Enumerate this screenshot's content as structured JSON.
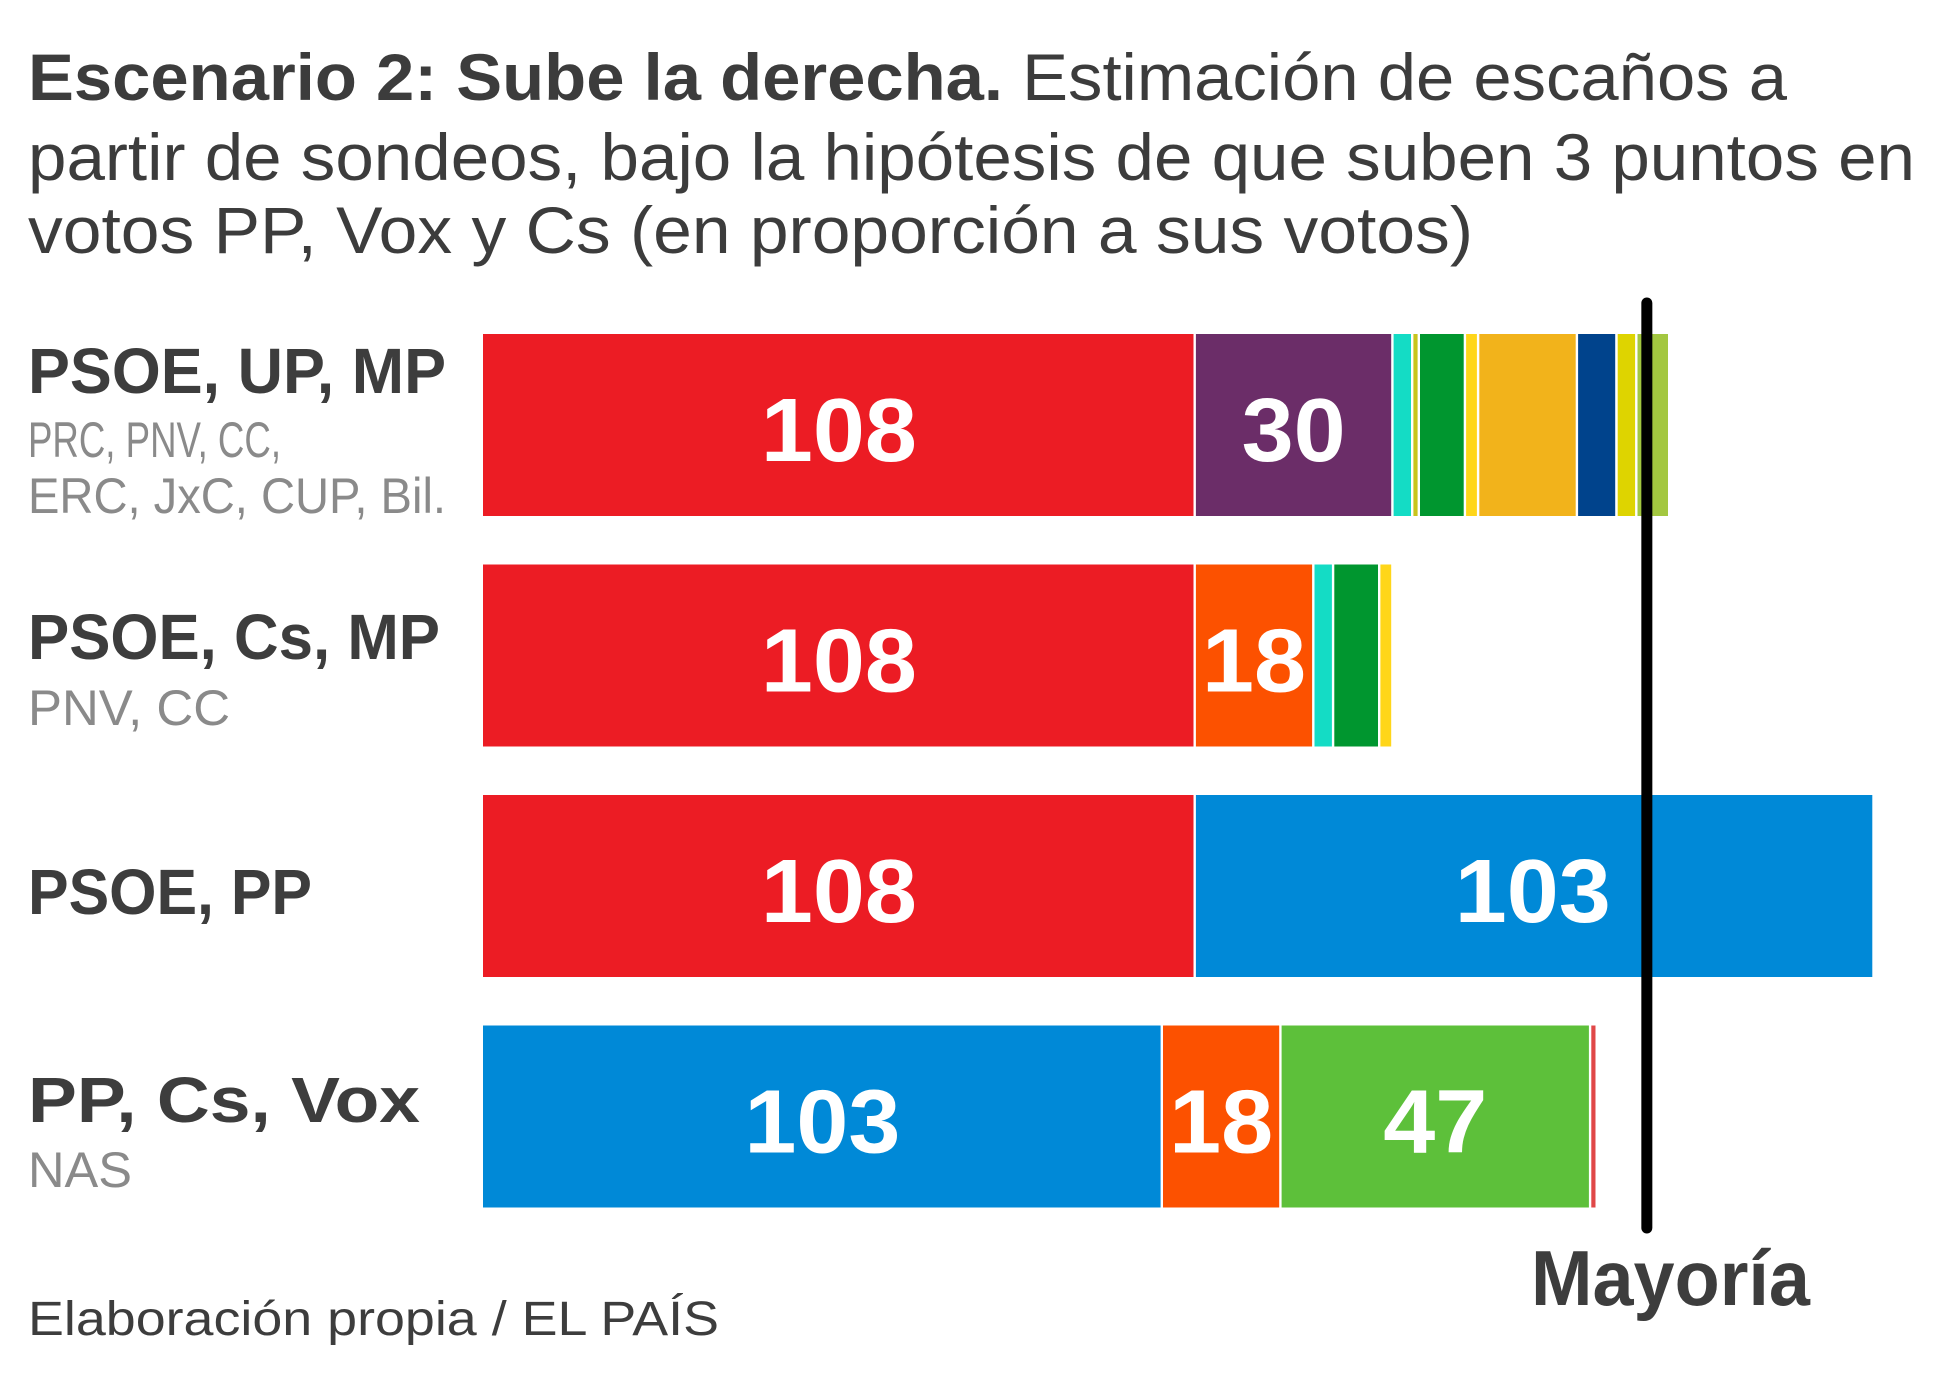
{
  "chart_data": {
    "type": "bar",
    "orientation": "horizontal-stacked",
    "title": "Escenario 2: Sube la derecha.",
    "subtitle": "Estimación de escaños a partir de sondeos, bajo la hipótesis de que suben 3 puntos en votos PP, Vox y Cs (en proporción a sus votos)",
    "title_lines": [
      {
        "bold": "Escenario 2: Sube la derecha.",
        "regular": " Estimación de escaños a"
      },
      {
        "bold": "",
        "regular": "partir de sondeos, bajo la hipótesis de que suben 3 puntos en"
      },
      {
        "bold": "",
        "regular": "votos PP, Vox y Cs (en proporción a sus votos)"
      }
    ],
    "xlabel": "",
    "ylabel": "",
    "xlim": [
      0,
      211
    ],
    "grid": false,
    "majority": {
      "label": "Mayoría",
      "value": 176
    },
    "source": "Elaboración propia / EL PAÍS",
    "categories": [
      {
        "label": "PSOE, UP, MP",
        "sublabel_lines": [
          "PRC, PNV, CC,",
          "ERC, JxC, CUP, Bil."
        ],
        "segments": [
          {
            "party": "PSOE",
            "value": 108,
            "color": "#ec1c24",
            "show_label": true
          },
          {
            "party": "UP",
            "value": 30,
            "color": "#6b2d68",
            "show_label": true
          },
          {
            "party": "MP",
            "value": 3,
            "color": "#14dcc5",
            "show_label": false
          },
          {
            "party": "PRC",
            "value": 1,
            "color": "#c8c41c",
            "show_label": false
          },
          {
            "party": "PNV",
            "value": 7,
            "color": "#00962f",
            "show_label": false
          },
          {
            "party": "CC",
            "value": 2,
            "color": "#ffd619",
            "show_label": false
          },
          {
            "party": "ERC",
            "value": 15,
            "color": "#f2b31b",
            "show_label": false
          },
          {
            "party": "JxC",
            "value": 6,
            "color": "#00438c",
            "show_label": false
          },
          {
            "party": "CUP",
            "value": 3,
            "color": "#ded400",
            "show_label": false
          },
          {
            "party": "Bil.",
            "value": 5,
            "color": "#a3c740",
            "show_label": false
          }
        ]
      },
      {
        "label": "PSOE, Cs, MP",
        "sublabel_lines": [
          "PNV, CC"
        ],
        "segments": [
          {
            "party": "PSOE",
            "value": 108,
            "color": "#ec1c24",
            "show_label": true
          },
          {
            "party": "Cs",
            "value": 18,
            "color": "#fc5100",
            "show_label": true
          },
          {
            "party": "MP",
            "value": 3,
            "color": "#14dcc5",
            "show_label": false
          },
          {
            "party": "PNV",
            "value": 7,
            "color": "#00962f",
            "show_label": false
          },
          {
            "party": "CC",
            "value": 2,
            "color": "#ffd619",
            "show_label": false
          }
        ]
      },
      {
        "label": "PSOE, PP",
        "sublabel_lines": [],
        "segments": [
          {
            "party": "PSOE",
            "value": 108,
            "color": "#ec1c24",
            "show_label": true
          },
          {
            "party": "PP",
            "value": 103,
            "color": "#0089d7",
            "show_label": true,
            "label_align": "majority"
          }
        ]
      },
      {
        "label": "PP, Cs, Vox",
        "sublabel_lines": [
          "NAS"
        ],
        "segments": [
          {
            "party": "PP",
            "value": 103,
            "color": "#0089d7",
            "show_label": true
          },
          {
            "party": "Cs",
            "value": 18,
            "color": "#fc5100",
            "show_label": true
          },
          {
            "party": "Vox",
            "value": 47,
            "color": "#5dc03a",
            "show_label": true
          },
          {
            "party": "NAS",
            "value": 1,
            "color": "#e04848",
            "show_label": false
          }
        ]
      }
    ]
  }
}
